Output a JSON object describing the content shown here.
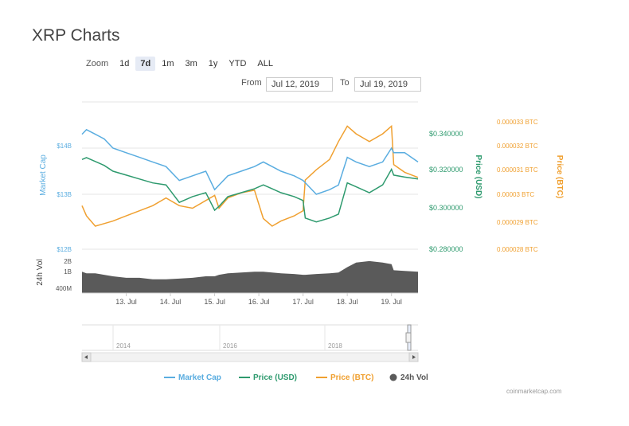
{
  "page": {
    "title": "XRP Charts",
    "credit": "coinmarketcap.com"
  },
  "zoom": {
    "label": "Zoom",
    "options": [
      "1d",
      "7d",
      "1m",
      "3m",
      "1y",
      "YTD",
      "ALL"
    ],
    "active": "7d"
  },
  "range": {
    "from_label": "From",
    "from_value": "Jul 12, 2019",
    "to_label": "To",
    "to_value": "Jul 19, 2019"
  },
  "colors": {
    "market_cap": "#5aade0",
    "price_usd": "#2e9a6e",
    "price_btc": "#f0a030",
    "volume": "#5a5a5a"
  },
  "chart_data": {
    "type": "line",
    "x_ticks": [
      "13. Jul",
      "14. Jul",
      "15. Jul",
      "16. Jul",
      "17. Jul",
      "18. Jul",
      "19. Jul"
    ],
    "axes": {
      "market_cap": {
        "label": "Market Cap",
        "ticks": [
          "$14B",
          "$13B",
          "$12B"
        ]
      },
      "price_usd": {
        "label": "Price (USD)",
        "ticks": [
          "$0.340000",
          "$0.320000",
          "$0.300000",
          "$0.280000"
        ],
        "ylim": [
          0.28,
          0.34
        ]
      },
      "price_btc": {
        "label": "Price (BTC)",
        "ticks": [
          "0.000033 BTC",
          "0.000032 BTC",
          "0.000031 BTC",
          "0.00003 BTC",
          "0.000029 BTC",
          "0.000028 BTC"
        ],
        "ylim": [
          2.8e-05,
          3.3e-05
        ]
      },
      "volume": {
        "label": "24h Vol",
        "ticks": [
          "2B",
          "1B",
          "400M"
        ]
      }
    },
    "x": [
      12.0,
      12.1,
      12.3,
      12.5,
      12.7,
      13.0,
      13.3,
      13.6,
      13.9,
      14.2,
      14.5,
      14.8,
      15.0,
      15.1,
      15.3,
      15.6,
      15.9,
      16.1,
      16.3,
      16.5,
      16.8,
      17.0,
      17.05,
      17.3,
      17.6,
      17.8,
      18.0,
      18.2,
      18.5,
      18.8,
      19.0,
      19.05,
      19.3,
      19.6
    ],
    "series": [
      {
        "name": "Market Cap",
        "values": [
          14.3,
          14.4,
          14.3,
          14.2,
          14.0,
          13.9,
          13.8,
          13.7,
          13.6,
          13.3,
          13.4,
          13.5,
          13.1,
          13.2,
          13.4,
          13.5,
          13.6,
          13.7,
          13.6,
          13.5,
          13.4,
          13.3,
          13.25,
          13.0,
          13.1,
          13.2,
          13.8,
          13.7,
          13.6,
          13.7,
          14.0,
          13.9,
          13.9,
          13.7
        ]
      },
      {
        "name": "Price (USD)",
        "values": [
          0.326,
          0.327,
          0.325,
          0.323,
          0.32,
          0.318,
          0.316,
          0.314,
          0.313,
          0.304,
          0.307,
          0.309,
          0.3,
          0.302,
          0.307,
          0.309,
          0.311,
          0.313,
          0.311,
          0.309,
          0.307,
          0.305,
          0.296,
          0.294,
          0.296,
          0.298,
          0.314,
          0.312,
          0.309,
          0.313,
          0.321,
          0.318,
          0.317,
          0.316
        ]
      },
      {
        "name": "Price (BTC)",
        "values": [
          2.97e-05,
          2.93e-05,
          2.89e-05,
          2.9e-05,
          2.91e-05,
          2.93e-05,
          2.95e-05,
          2.97e-05,
          3e-05,
          2.97e-05,
          2.96e-05,
          2.99e-05,
          3.01e-05,
          2.96e-05,
          3e-05,
          3.02e-05,
          3.03e-05,
          2.92e-05,
          2.89e-05,
          2.91e-05,
          2.93e-05,
          2.95e-05,
          3.07e-05,
          3.11e-05,
          3.15e-05,
          3.22e-05,
          3.28e-05,
          3.25e-05,
          3.22e-05,
          3.25e-05,
          3.28e-05,
          3.13e-05,
          3.1e-05,
          3.08e-05
        ]
      },
      {
        "name": "24h Vol",
        "values": [
          1.4,
          1.3,
          1.3,
          1.2,
          1.1,
          1.0,
          1.0,
          0.9,
          0.9,
          0.95,
          1.0,
          1.1,
          1.1,
          1.2,
          1.3,
          1.35,
          1.4,
          1.4,
          1.35,
          1.3,
          1.25,
          1.2,
          1.2,
          1.25,
          1.3,
          1.35,
          1.7,
          2.0,
          2.1,
          2.0,
          1.9,
          1.5,
          1.45,
          1.4
        ]
      }
    ],
    "navigator": {
      "ticks": [
        "2014",
        "2016",
        "2018"
      ]
    },
    "legend": {
      "placement": "bottom",
      "entries": [
        "Market Cap",
        "Price (USD)",
        "Price (BTC)",
        "24h Vol"
      ]
    }
  }
}
